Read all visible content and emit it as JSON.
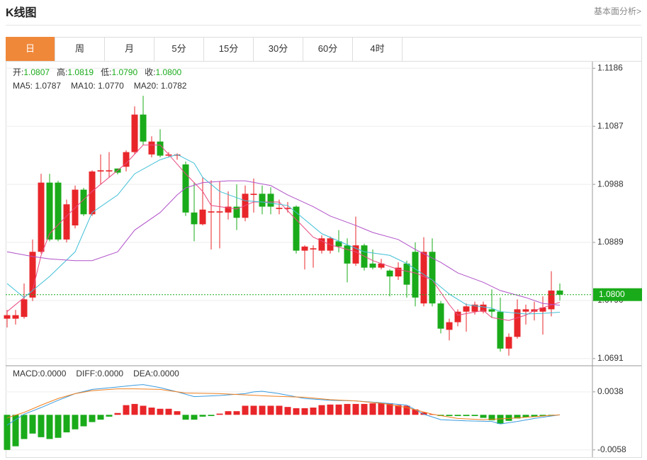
{
  "header": {
    "title": "K线图",
    "link": "基本面分析>"
  },
  "tabs": {
    "items": [
      "日",
      "周",
      "月",
      "5分",
      "15分",
      "30分",
      "60分",
      "4时"
    ],
    "selected": 0
  },
  "chart_data": [
    {
      "type": "candlestick",
      "up_color": "#e8262a",
      "down_color": "#1aab1a",
      "grid": true,
      "ylim": [
        1.068,
        1.1196
      ],
      "yticks": [
        1.1186,
        1.1087,
        1.0988,
        1.0889,
        {
          "value": 1.079,
          "label": "1.0790"
        },
        1.0691
      ],
      "info": [
        {
          "label": "开:",
          "value_label": "1.0807"
        },
        {
          "label": "高:",
          "value_label": "1.0819"
        },
        {
          "label": "低:",
          "value_label": "1.0790"
        },
        {
          "label": "收:",
          "value_label": "1.0800"
        }
      ],
      "last_price": {
        "value": 1.08,
        "label": "1.0800"
      },
      "open": [
        1.0759,
        1.0759,
        1.0762,
        1.0795,
        1.0873,
        1.0991,
        1.0991,
        1.0894,
        1.0918,
        1.0979,
        1.0937,
        1.101,
        1.101,
        1.1015,
        1.1018,
        1.1043,
        1.1107,
        1.1039,
        1.1061,
        1.1037,
        1.1037,
        1.1022,
        1.094,
        1.092,
        1.094,
        1.094,
        1.094,
        1.095,
        1.0931,
        1.097,
        1.0972,
        1.0972,
        1.0946,
        1.0946,
        1.095,
        1.0875,
        1.0877,
        1.0875,
        1.0875,
        1.0891,
        1.0884,
        1.0853,
        1.0884,
        1.0853,
        1.0846,
        1.0841,
        1.0831,
        1.0853,
        1.0873,
        1.0785,
        1.0873,
        1.0785,
        1.074,
        1.0753,
        1.0771,
        1.0771,
        1.0771,
        1.0775,
        1.0771,
        1.0708,
        1.0728,
        1.0771,
        1.0771,
        1.0771,
        1.0775,
        1.0807
      ],
      "high": [
        1.0774,
        1.0774,
        1.0819,
        1.0894,
        1.1006,
        1.1006,
        1.0994,
        1.0962,
        1.0986,
        1.0982,
        1.1012,
        1.1039,
        1.1043,
        1.1015,
        1.1046,
        1.1121,
        1.1139,
        1.107,
        1.1082,
        1.1043,
        1.1041,
        1.1027,
        1.0991,
        1.1,
        1.0995,
        1.0993,
        1.0976,
        1.0988,
        1.0986,
        1.0998,
        1.0986,
        1.0983,
        1.0962,
        1.0958,
        1.0952,
        1.0884,
        1.0884,
        1.0901,
        1.0899,
        1.091,
        1.0896,
        1.0933,
        1.0887,
        1.0877,
        1.0861,
        1.0843,
        1.0855,
        1.0858,
        1.0889,
        1.0898,
        1.0896,
        1.0789,
        1.0759,
        1.0775,
        1.0785,
        1.0788,
        1.0788,
        1.0809,
        1.0795,
        1.0734,
        1.0792,
        1.0783,
        1.0788,
        1.0797,
        1.084,
        1.0819
      ],
      "low": [
        1.0744,
        1.0749,
        1.0759,
        1.0789,
        1.087,
        1.0891,
        1.0891,
        1.0889,
        1.0913,
        1.0934,
        1.0934,
        1.0988,
        1.1,
        1.1005,
        1.101,
        1.1039,
        1.1055,
        1.1034,
        1.1034,
        1.1034,
        1.103,
        1.0934,
        1.0891,
        1.0918,
        1.0877,
        1.0879,
        1.0928,
        1.091,
        1.0925,
        1.094,
        1.0937,
        1.0937,
        1.0937,
        1.094,
        1.087,
        1.0843,
        1.0846,
        1.087,
        1.087,
        1.0872,
        1.0821,
        1.0849,
        1.0841,
        1.0843,
        1.0843,
        1.0797,
        1.0825,
        1.0795,
        1.078,
        1.078,
        1.078,
        1.0734,
        1.0722,
        1.0746,
        1.0737,
        1.0766,
        1.0768,
        1.0761,
        1.0703,
        1.0696,
        1.0725,
        1.0749,
        1.0756,
        1.0732,
        1.0763,
        1.079
      ],
      "close": [
        1.0765,
        1.0765,
        1.0792,
        1.0873,
        1.0991,
        1.0894,
        1.0894,
        1.0954,
        1.0979,
        1.0937,
        1.101,
        1.1012,
        1.1012,
        1.1008,
        1.1043,
        1.1107,
        1.1061,
        1.1061,
        1.1037,
        1.1039,
        1.1039,
        1.094,
        1.092,
        1.0945,
        1.0942,
        1.0942,
        1.095,
        1.0931,
        1.0972,
        1.0972,
        1.095,
        1.095,
        1.0948,
        1.0948,
        1.0875,
        1.0882,
        1.0879,
        1.0896,
        1.0896,
        1.0882,
        1.0853,
        1.0884,
        1.0846,
        1.0846,
        1.0853,
        1.0831,
        1.0846,
        1.0817,
        1.0795,
        1.0873,
        1.0785,
        1.0742,
        1.0753,
        1.0771,
        1.078,
        1.0783,
        1.0783,
        1.0771,
        1.0708,
        1.0728,
        1.0775,
        1.0775,
        1.0775,
        1.0778,
        1.0807,
        1.08
      ],
      "series": [
        {
          "legend": "MA5: 1.0787",
          "color": "#e84a82",
          "x": [
            0,
            3,
            4,
            5,
            7,
            10,
            12,
            14,
            16,
            18,
            19,
            21,
            23,
            24,
            27,
            29,
            32,
            34,
            36,
            38,
            41,
            43,
            46,
            48,
            50,
            52,
            53,
            56,
            57,
            59,
            61,
            62,
            65
          ],
          "values": [
            1.0771,
            1.0807,
            1.0867,
            1.0904,
            1.0934,
            1.0976,
            1.1,
            1.1024,
            1.1055,
            1.1055,
            1.1039,
            1.1006,
            1.0976,
            1.0952,
            1.0946,
            1.0958,
            1.0958,
            1.0928,
            1.0898,
            1.0885,
            1.0873,
            1.0858,
            1.0843,
            1.0837,
            1.0825,
            1.0783,
            1.0765,
            1.0773,
            1.0761,
            1.0756,
            1.0765,
            1.0773,
            1.0787
          ]
        },
        {
          "legend": "MA10: 1.0770",
          "color": "#3fbfd6",
          "x": [
            0,
            2,
            3,
            5,
            8,
            10,
            13,
            15,
            18,
            20,
            22,
            23,
            25,
            28,
            30,
            33,
            35,
            37,
            40,
            42,
            45,
            47,
            50,
            52,
            54,
            57,
            58,
            61,
            63,
            65
          ],
          "values": [
            1.0819,
            1.0795,
            1.0807,
            1.0831,
            1.0873,
            1.094,
            1.097,
            1.1006,
            1.103,
            1.1039,
            1.1024,
            1.1,
            1.0976,
            1.096,
            1.0958,
            1.0952,
            1.0928,
            1.0904,
            1.0885,
            1.0873,
            1.0867,
            1.0853,
            1.0825,
            1.0801,
            1.0783,
            1.0777,
            1.0771,
            1.0767,
            1.0768,
            1.077
          ]
        },
        {
          "legend": "MA20: 1.0782",
          "color": "#b152c9",
          "x": [
            0,
            3,
            5,
            8,
            10,
            13,
            15,
            18,
            20,
            21,
            23,
            26,
            28,
            31,
            33,
            36,
            38,
            41,
            43,
            46,
            48,
            51,
            53,
            56,
            58,
            61,
            63,
            65
          ],
          "values": [
            1.0873,
            1.0865,
            1.0861,
            1.0858,
            1.0858,
            1.0873,
            1.091,
            1.094,
            1.097,
            1.0982,
            1.0991,
            1.0994,
            1.0994,
            1.0986,
            1.097,
            1.095,
            1.0934,
            1.0918,
            1.0906,
            1.0894,
            1.0877,
            1.0855,
            1.0837,
            1.0821,
            1.0807,
            1.0795,
            1.0785,
            1.0782
          ]
        }
      ]
    },
    {
      "type": "macd",
      "legend": "MACD:0.0000",
      "up_color": "#e8262a",
      "down_color": "#1aab1a",
      "grid": true,
      "ylim": [
        -0.007,
        0.008
      ],
      "yticks": [
        0.0038,
        -0.0058
      ],
      "values": [
        -0.0058,
        -0.0052,
        -0.004,
        -0.0031,
        -0.0037,
        -0.004,
        -0.0038,
        -0.0029,
        -0.0024,
        -0.0019,
        -0.0012,
        -0.0008,
        -0.0003,
        0.0003,
        0.0016,
        0.0018,
        0.0015,
        0.0012,
        0.001,
        0.001,
        0.0006,
        -0.0008,
        -0.0008,
        -0.0003,
        -0.0002,
        0.0002,
        0.0006,
        0.0006,
        0.0015,
        0.0015,
        0.0015,
        0.0015,
        0.0015,
        0.0013,
        0.0011,
        0.0011,
        0.0012,
        0.0016,
        0.0017,
        0.0017,
        0.0018,
        0.0018,
        0.0018,
        0.0019,
        0.0019,
        0.0019,
        0.0016,
        0.0015,
        0.0009,
        0.0004,
        0.0001,
        -0.0002,
        -0.0002,
        -0.0002,
        -0.0002,
        -0.0002,
        -0.0005,
        -0.0009,
        -0.0015,
        -0.001,
        -0.0006,
        -0.0004,
        -0.0003,
        -0.0002,
        -0.0001,
        0
      ],
      "series": [
        {
          "legend": "DIFF:0.0000",
          "color": "#3b9be0",
          "x": [
            0,
            2,
            4,
            6,
            8,
            10,
            13,
            15,
            16,
            18,
            20,
            22,
            25,
            28,
            29,
            30,
            32,
            35,
            38,
            41,
            44,
            47,
            49,
            51,
            54,
            57,
            58,
            60,
            62,
            65
          ],
          "values": [
            -0.0017,
            0.0001,
            0.0012,
            0.0024,
            0.0035,
            0.0042,
            0.0046,
            0.0049,
            0.005,
            0.0045,
            0.0038,
            0.003,
            0.0032,
            0.0035,
            0.0038,
            0.0039,
            0.0035,
            0.0027,
            0.0024,
            0.0023,
            0.002,
            0.0016,
            0.0001,
            -0.0008,
            -0.001,
            -0.0011,
            -0.0015,
            -0.0011,
            -0.0006,
            0
          ]
        },
        {
          "legend": "DEA:0.0000",
          "color": "#f07f1e",
          "x": [
            0,
            2,
            4,
            6,
            8,
            10,
            13,
            15,
            18,
            21,
            25,
            28,
            31,
            35,
            38,
            41,
            44,
            47,
            50,
            53,
            56,
            59,
            62,
            65
          ],
          "values": [
            -0.0005,
            0.0004,
            0.0016,
            0.0027,
            0.0035,
            0.004,
            0.0043,
            0.0043,
            0.0042,
            0.0036,
            0.0035,
            0.0033,
            0.0031,
            0.0029,
            0.0025,
            0.0023,
            0.0019,
            0.0012,
            0.0001,
            -0.0006,
            -0.0008,
            -0.0006,
            -0.0003,
            0
          ]
        }
      ]
    }
  ]
}
